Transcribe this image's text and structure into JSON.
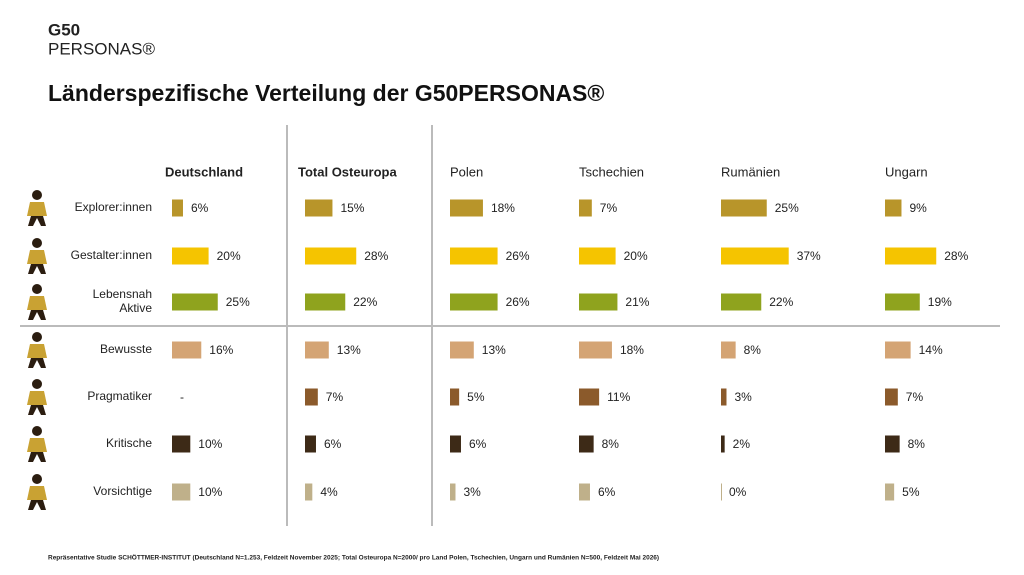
{
  "logo": {
    "top": "G50",
    "bottom": "PERSONAS®"
  },
  "footnote": "Repräsentative Studie SCHÖTTMER-INSTITUT (Deutschland N=1.253, Feldzeit November 2025; Total Osteuropa N=2000/ pro Land Polen, Tschechien, Ungarn und Rumänien N=500, Feldzeit Mai 2026)",
  "chart_data": {
    "type": "bar",
    "title": "Länderspezifische Verteilung der G50PERSONAS®",
    "categories": [
      "Explorer:innen",
      "Gestalter:innen",
      "Lebensnah Aktive",
      "Bewusste",
      "Pragmatiker",
      "Kritische",
      "Vorsichtige"
    ],
    "colors": [
      "#b8952a",
      "#f5c400",
      "#8fa31e",
      "#d4a474",
      "#8b5a2b",
      "#3d2a17",
      "#bfb08a"
    ],
    "series": [
      {
        "name": "Deutschland",
        "values": [
          6,
          20,
          25,
          16,
          null,
          10,
          10
        ],
        "value_labels": [
          "6%",
          "20%",
          "25%",
          "16%",
          "-",
          "10%",
          "10%"
        ]
      },
      {
        "name": "Total Osteuropa",
        "values": [
          15,
          28,
          22,
          13,
          7,
          6,
          4
        ],
        "value_labels": [
          "15%",
          "28%",
          "22%",
          "13%",
          "7%",
          "6%",
          "4%"
        ]
      },
      {
        "name": "Polen",
        "values": [
          18,
          26,
          26,
          13,
          5,
          6,
          3
        ],
        "value_labels": [
          "18%",
          "26%",
          "26%",
          "13%",
          "5%",
          "6%",
          "3%"
        ]
      },
      {
        "name": "Tschechien",
        "values": [
          7,
          20,
          21,
          18,
          11,
          8,
          6
        ],
        "value_labels": [
          "7%",
          "20%",
          "21%",
          "18%",
          "11%",
          "8%",
          "6%"
        ]
      },
      {
        "name": "Rumänien",
        "values": [
          25,
          37,
          22,
          8,
          3,
          2,
          0
        ],
        "value_labels": [
          "25%",
          "37%",
          "22%",
          "8%",
          "3%",
          "2%",
          "0%"
        ]
      },
      {
        "name": "Ungarn",
        "values": [
          9,
          28,
          19,
          14,
          7,
          8,
          5
        ],
        "value_labels": [
          "9%",
          "28%",
          "19%",
          "14%",
          "7%",
          "8%",
          "5%"
        ]
      }
    ]
  }
}
